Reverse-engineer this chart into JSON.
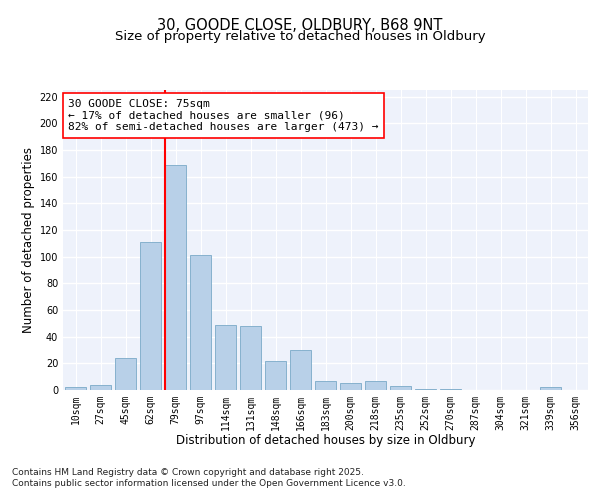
{
  "title_line1": "30, GOODE CLOSE, OLDBURY, B68 9NT",
  "title_line2": "Size of property relative to detached houses in Oldbury",
  "xlabel": "Distribution of detached houses by size in Oldbury",
  "ylabel": "Number of detached properties",
  "bin_labels": [
    "10sqm",
    "27sqm",
    "45sqm",
    "62sqm",
    "79sqm",
    "97sqm",
    "114sqm",
    "131sqm",
    "148sqm",
    "166sqm",
    "183sqm",
    "200sqm",
    "218sqm",
    "235sqm",
    "252sqm",
    "270sqm",
    "287sqm",
    "304sqm",
    "321sqm",
    "339sqm",
    "356sqm"
  ],
  "bar_values": [
    2,
    4,
    24,
    111,
    169,
    101,
    49,
    48,
    22,
    30,
    7,
    5,
    7,
    3,
    1,
    1,
    0,
    0,
    0,
    2,
    0
  ],
  "bar_color": "#b8d0e8",
  "bar_edge_color": "#7aaac8",
  "vline_bin_index": 4,
  "vline_color": "red",
  "annotation_text": "30 GOODE CLOSE: 75sqm\n← 17% of detached houses are smaller (96)\n82% of semi-detached houses are larger (473) →",
  "annotation_box_color": "white",
  "annotation_box_edge": "red",
  "ylim": [
    0,
    225
  ],
  "yticks": [
    0,
    20,
    40,
    60,
    80,
    100,
    120,
    140,
    160,
    180,
    200,
    220
  ],
  "background_color": "#eef2fb",
  "grid_color": "white",
  "footer": "Contains HM Land Registry data © Crown copyright and database right 2025.\nContains public sector information licensed under the Open Government Licence v3.0.",
  "title_fontsize": 10.5,
  "subtitle_fontsize": 9.5,
  "axis_label_fontsize": 8.5,
  "tick_fontsize": 7,
  "annotation_fontsize": 8,
  "footer_fontsize": 6.5
}
